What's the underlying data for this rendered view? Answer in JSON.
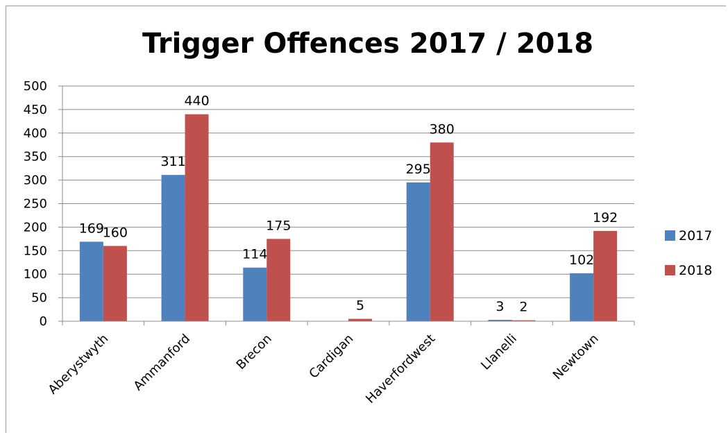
{
  "chart_data": {
    "type": "bar",
    "title": "Trigger Offences 2017 / 2018",
    "categories": [
      "Aberystwyth",
      "Ammanford",
      "Brecon",
      "Cardigan",
      "Haverfordwest",
      "Llanelli",
      "Newtown"
    ],
    "series": [
      {
        "name": "2017",
        "color": "#4f81bd",
        "values": [
          169,
          311,
          114,
          0,
          295,
          3,
          102
        ],
        "labels": [
          "169",
          "311",
          "114",
          "",
          "295",
          "3",
          "102"
        ]
      },
      {
        "name": "2018",
        "color": "#c0504d",
        "values": [
          160,
          440,
          175,
          5,
          380,
          2,
          192
        ],
        "labels": [
          "160",
          "440",
          "175",
          "5",
          "380",
          "2",
          "192"
        ]
      }
    ],
    "ylim": [
      0,
      500
    ],
    "yticks": [
      "0",
      "50",
      "100",
      "150",
      "200",
      "250",
      "300",
      "350",
      "400",
      "450",
      "500"
    ],
    "grid": true,
    "legend": "right"
  }
}
